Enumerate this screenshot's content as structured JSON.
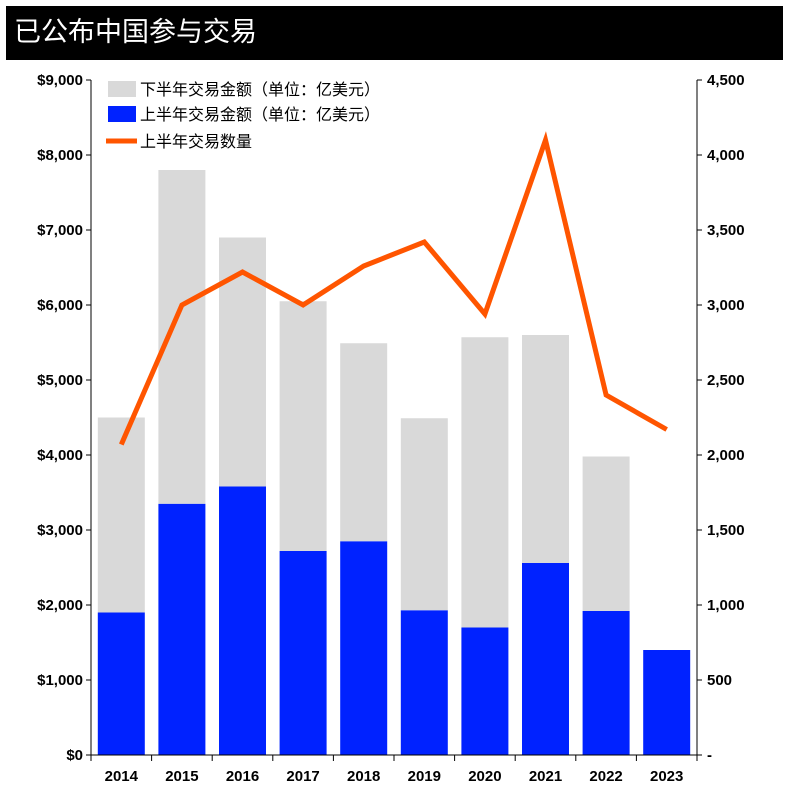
{
  "colors": {
    "h2": "#d9d9d9",
    "h1": "#0022ff",
    "line": "#ff5500"
  },
  "chart_data": {
    "type": "bar",
    "title": "已公布中国参与交易",
    "categories": [
      "2014",
      "2015",
      "2016",
      "2017",
      "2018",
      "2019",
      "2020",
      "2021",
      "2022",
      "2023"
    ],
    "series": [
      {
        "name": "下半年交易金额（单位：亿美元）",
        "kind": "bar-stack-top",
        "values": [
          2600,
          4450,
          3320,
          3330,
          2640,
          2560,
          3870,
          3040,
          2060,
          0
        ]
      },
      {
        "name": "上半年交易金额（单位：亿美元）",
        "kind": "bar-stack-bottom",
        "values": [
          1900,
          3350,
          3580,
          2720,
          2850,
          1930,
          1700,
          2560,
          1920,
          1400
        ]
      },
      {
        "name": "上半年交易数量",
        "kind": "line",
        "axis": "right",
        "values": [
          2070,
          3000,
          3220,
          3000,
          3260,
          3420,
          2940,
          4100,
          2400,
          2170
        ]
      }
    ],
    "ylim_left": [
      0,
      9000
    ],
    "ylim_right": [
      0,
      4500
    ],
    "yticks_left": [
      "$0",
      "$1,000",
      "$2,000",
      "$3,000",
      "$4,000",
      "$5,000",
      "$6,000",
      "$7,000",
      "$8,000",
      "$9,000"
    ],
    "yticks_right": [
      "-",
      "500",
      "1,000",
      "1,500",
      "2,000",
      "2,500",
      "3,000",
      "3,500",
      "4,000",
      "4,500"
    ],
    "legend_position": "top-left",
    "grid": false
  }
}
